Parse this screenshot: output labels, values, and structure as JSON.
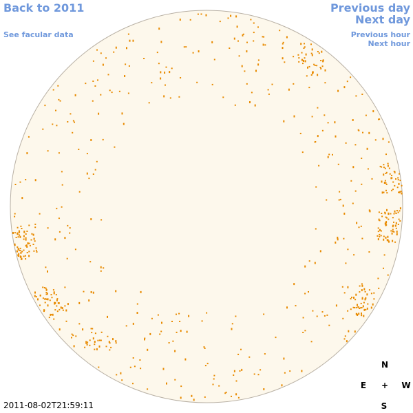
{
  "links": {
    "back": "Back to 2011",
    "facular": "See facular data",
    "previous_day": "Previous day",
    "next_day": "Next day",
    "previous_hour": "Previous hour",
    "next_hour": "Next hour"
  },
  "compass": {
    "north": "N",
    "east": "E",
    "center": "+",
    "west": "W",
    "south": "S"
  },
  "timestamp": "2011-08-02T21:59:11"
}
